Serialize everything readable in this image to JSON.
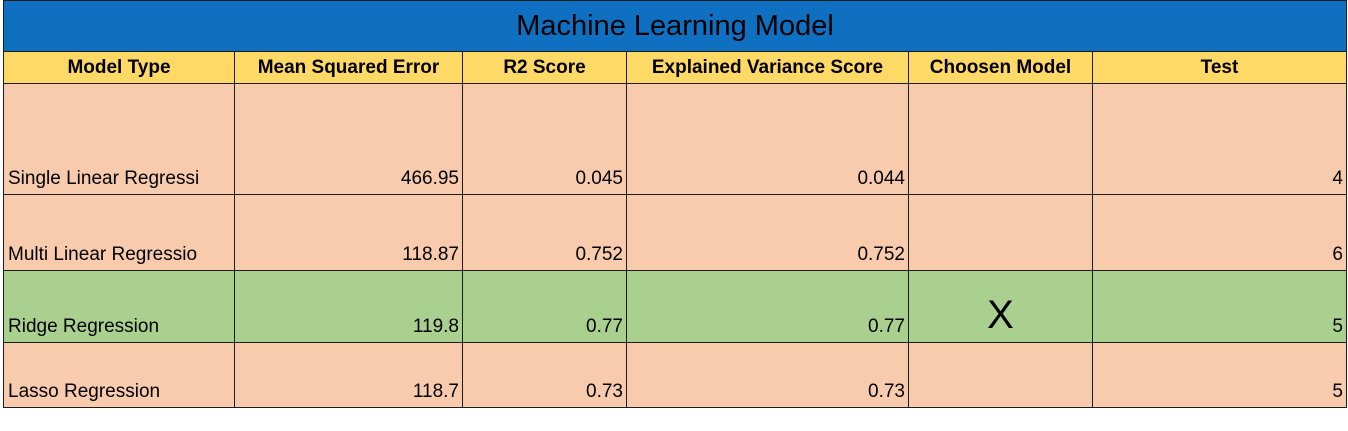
{
  "title": "Machine Learning Model",
  "columns": [
    "Model Type",
    "Mean Squared Error",
    "R2 Score",
    "Explained Variance Score",
    "Choosen Model",
    "Test"
  ],
  "rows": [
    {
      "model": "Single Linear Regressi",
      "mse": "466.95",
      "r2": "0.045",
      "evs": "0.044",
      "chosen": "",
      "test": "4"
    },
    {
      "model": "Multi Linear Regressio",
      "mse": "118.87",
      "r2": "0.752",
      "evs": "0.752",
      "chosen": "",
      "test": "6"
    },
    {
      "model": "Ridge Regression",
      "mse": "119.8",
      "r2": "0.77",
      "evs": "0.77",
      "chosen": "X",
      "test": "5"
    },
    {
      "model": "Lasso Regression",
      "mse": "118.7",
      "r2": "0.73",
      "evs": "0.73",
      "chosen": "",
      "test": "5"
    }
  ],
  "colors": {
    "title_bg": "#0f70c2",
    "header_bg": "#ffd966",
    "row_bg": "#f8cbad",
    "selected_row_bg": "#a9d08e"
  }
}
